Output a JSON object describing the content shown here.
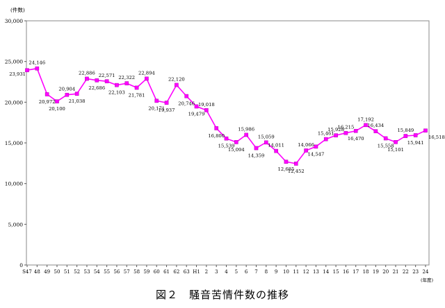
{
  "chart_data": {
    "type": "line",
    "ylabel": "(件数)",
    "xlabel": "(年度)",
    "ylim": [
      0,
      30000
    ],
    "yticks": [
      0,
      5000,
      10000,
      15000,
      20000,
      25000,
      30000
    ],
    "ytick_labels": [
      "0",
      "5,000",
      "10,000",
      "15,000",
      "20,000",
      "25,000",
      "30,000"
    ],
    "grid": false,
    "color": "#ff00ff",
    "categories": [
      "S47",
      "48",
      "49",
      "50",
      "51",
      "52",
      "53",
      "54",
      "55",
      "56",
      "57",
      "58",
      "59",
      "60",
      "61",
      "62",
      "63",
      "H1",
      "2",
      "3",
      "4",
      "5",
      "6",
      "7",
      "8",
      "9",
      "10",
      "11",
      "12",
      "13",
      "14",
      "15",
      "16",
      "17",
      "18",
      "19",
      "20",
      "21",
      "22",
      "23",
      "24"
    ],
    "values": [
      23931,
      24146,
      20972,
      20100,
      20904,
      21038,
      22886,
      22686,
      22571,
      22103,
      22322,
      21781,
      22894,
      20171,
      19937,
      22120,
      20746,
      19479,
      19018,
      16800,
      15539,
      15094,
      15986,
      14359,
      15059,
      14011,
      12685,
      12452,
      14066,
      14547,
      15461,
      15928,
      16215,
      16470,
      17192,
      16434,
      15558,
      15101,
      15849,
      15941,
      16518
    ],
    "labels": [
      "23,931",
      "24,146",
      "20,972",
      "20,100",
      "20,904",
      "21,038",
      "22,886",
      "22,686",
      "22,571",
      "22,103",
      "22,322",
      "21,781",
      "22,894",
      "20,171",
      "19,937",
      "22,120",
      "20,746",
      "19,479",
      "19,018",
      "16,800",
      "15,539",
      "15,094",
      "15,986",
      "14,359",
      "15,059",
      "14,011",
      "12,685",
      "12,452",
      "14,066",
      "14,547",
      "15,461",
      "15,928",
      "16,215",
      "16,470",
      "17,192",
      "16,434",
      "15,558",
      "15,101",
      "15,849",
      "15,941",
      "16,518"
    ]
  },
  "caption": "図２　騒音苦情件数の推移"
}
